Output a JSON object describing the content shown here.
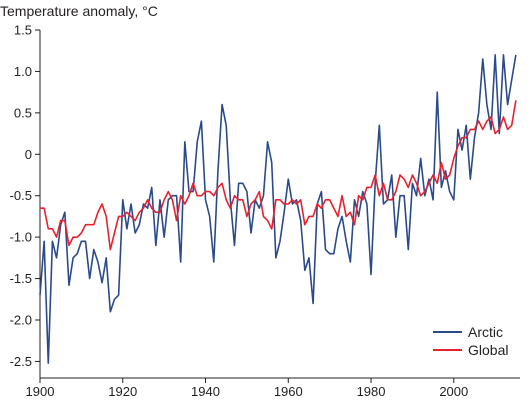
{
  "chart_data": {
    "type": "line",
    "title": "",
    "ylabel": "Temperature anomaly, °C",
    "xlabel": "",
    "xlim": [
      1900,
      2016
    ],
    "ylim": [
      -2.7,
      1.5
    ],
    "xticks": [
      1900,
      1920,
      1940,
      1960,
      1980,
      2000
    ],
    "xtick_labels": [
      "1900",
      "1920",
      "1940",
      "1960",
      "1980",
      "2000"
    ],
    "yticks": [
      1.5,
      1.0,
      0.5,
      0,
      -0.5,
      -1.0,
      -1.5,
      -2.0,
      -2.5
    ],
    "ytick_labels": [
      "1.5",
      "1.0",
      "0.5",
      "0",
      "-0.5",
      "-1.0",
      "-1.5",
      "-2.0",
      "-2.5"
    ],
    "grid": false,
    "legend_position": "bottom-right",
    "series": [
      {
        "name": "Arctic",
        "color": "#2b4a8b",
        "x": [
          1900,
          1901,
          1902,
          1903,
          1904,
          1905,
          1906,
          1907,
          1908,
          1909,
          1910,
          1911,
          1912,
          1913,
          1914,
          1915,
          1916,
          1917,
          1918,
          1919,
          1920,
          1921,
          1922,
          1923,
          1924,
          1925,
          1926,
          1927,
          1928,
          1929,
          1930,
          1931,
          1932,
          1933,
          1934,
          1935,
          1936,
          1937,
          1938,
          1939,
          1940,
          1941,
          1942,
          1943,
          1944,
          1945,
          1946,
          1947,
          1948,
          1949,
          1950,
          1951,
          1952,
          1953,
          1954,
          1955,
          1956,
          1957,
          1958,
          1959,
          1960,
          1961,
          1962,
          1963,
          1964,
          1965,
          1966,
          1967,
          1968,
          1969,
          1970,
          1971,
          1972,
          1973,
          1974,
          1975,
          1976,
          1977,
          1978,
          1979,
          1980,
          1981,
          1982,
          1983,
          1984,
          1985,
          1986,
          1987,
          1988,
          1989,
          1990,
          1991,
          1992,
          1993,
          1994,
          1995,
          1996,
          1997,
          1998,
          1999,
          2000,
          2001,
          2002,
          2003,
          2004,
          2005,
          2006,
          2007,
          2008,
          2009,
          2010,
          2011,
          2012,
          2013,
          2014,
          2015
        ],
        "values": [
          -1.7,
          -1.05,
          -2.52,
          -1.05,
          -1.25,
          -0.85,
          -0.7,
          -1.58,
          -1.25,
          -1.2,
          -1.05,
          -1.05,
          -1.5,
          -1.15,
          -1.3,
          -1.55,
          -1.25,
          -1.9,
          -1.75,
          -1.7,
          -0.55,
          -0.9,
          -0.6,
          -0.95,
          -0.85,
          -0.6,
          -0.65,
          -0.4,
          -1.1,
          -0.55,
          -1.0,
          -0.55,
          -0.5,
          -0.5,
          -1.3,
          0.15,
          -0.45,
          -0.45,
          0.15,
          0.4,
          -0.55,
          -0.75,
          -1.3,
          -0.2,
          0.6,
          0.35,
          -0.55,
          -1.1,
          -0.35,
          -0.35,
          -0.45,
          -0.95,
          -0.55,
          -0.65,
          -0.5,
          0.15,
          -0.1,
          -1.25,
          -1.05,
          -0.7,
          -0.3,
          -0.6,
          -0.55,
          -0.8,
          -1.4,
          -1.25,
          -1.8,
          -0.6,
          -0.45,
          -1.15,
          -1.2,
          -1.2,
          -0.9,
          -0.75,
          -1.05,
          -1.3,
          -0.55,
          -0.75,
          -0.45,
          -0.6,
          -1.45,
          -0.35,
          0.35,
          -0.6,
          -0.55,
          -0.25,
          -1.0,
          -0.5,
          -0.5,
          -1.15,
          -0.35,
          -0.5,
          -0.05,
          -0.5,
          -0.3,
          -0.55,
          0.75,
          -0.4,
          -0.2,
          -0.45,
          -0.55,
          0.3,
          0.05,
          0.35,
          -0.3,
          0.2,
          0.5,
          1.15,
          0.6,
          0.3,
          1.2,
          0.25,
          1.2,
          0.6,
          0.9,
          1.2
        ]
      },
      {
        "name": "Global",
        "color": "#e8212e",
        "x": [
          1900,
          1901,
          1902,
          1903,
          1904,
          1905,
          1906,
          1907,
          1908,
          1909,
          1910,
          1911,
          1912,
          1913,
          1914,
          1915,
          1916,
          1917,
          1918,
          1919,
          1920,
          1921,
          1922,
          1923,
          1924,
          1925,
          1926,
          1927,
          1928,
          1929,
          1930,
          1931,
          1932,
          1933,
          1934,
          1935,
          1936,
          1937,
          1938,
          1939,
          1940,
          1941,
          1942,
          1943,
          1944,
          1945,
          1946,
          1947,
          1948,
          1949,
          1950,
          1951,
          1952,
          1953,
          1954,
          1955,
          1956,
          1957,
          1958,
          1959,
          1960,
          1961,
          1962,
          1963,
          1964,
          1965,
          1966,
          1967,
          1968,
          1969,
          1970,
          1971,
          1972,
          1973,
          1974,
          1975,
          1976,
          1977,
          1978,
          1979,
          1980,
          1981,
          1982,
          1983,
          1984,
          1985,
          1986,
          1987,
          1988,
          1989,
          1990,
          1991,
          1992,
          1993,
          1994,
          1995,
          1996,
          1997,
          1998,
          1999,
          2000,
          2001,
          2002,
          2003,
          2004,
          2005,
          2006,
          2007,
          2008,
          2009,
          2010,
          2011,
          2012,
          2013,
          2014,
          2015
        ],
        "values": [
          -0.65,
          -0.65,
          -0.9,
          -0.9,
          -1.0,
          -0.8,
          -0.8,
          -1.1,
          -1.0,
          -1.0,
          -0.95,
          -0.85,
          -0.85,
          -0.85,
          -0.7,
          -0.6,
          -0.75,
          -1.15,
          -0.95,
          -0.75,
          -0.75,
          -0.7,
          -0.75,
          -0.8,
          -0.7,
          -0.65,
          -0.55,
          -0.65,
          -0.7,
          -0.7,
          -0.55,
          -0.45,
          -0.55,
          -0.8,
          -0.5,
          -0.6,
          -0.5,
          -0.35,
          -0.5,
          -0.5,
          -0.45,
          -0.45,
          -0.5,
          -0.4,
          -0.35,
          -0.55,
          -0.65,
          -0.5,
          -0.55,
          -0.55,
          -0.75,
          -0.6,
          -0.55,
          -0.45,
          -0.75,
          -0.8,
          -0.9,
          -0.55,
          -0.55,
          -0.6,
          -0.6,
          -0.55,
          -0.6,
          -0.55,
          -0.85,
          -0.75,
          -0.75,
          -0.6,
          -0.65,
          -0.55,
          -0.55,
          -0.65,
          -0.75,
          -0.5,
          -0.75,
          -0.7,
          -0.85,
          -0.5,
          -0.55,
          -0.4,
          -0.4,
          -0.25,
          -0.5,
          -0.35,
          -0.55,
          -0.55,
          -0.45,
          -0.25,
          -0.3,
          -0.4,
          -0.25,
          -0.35,
          -0.5,
          -0.45,
          -0.35,
          -0.25,
          -0.35,
          -0.1,
          -0.3,
          -0.25,
          -0.05,
          0.1,
          0.2,
          0.2,
          0.3,
          0.3,
          0.4,
          0.3,
          0.4,
          0.45,
          0.25,
          0.3,
          0.45,
          0.3,
          0.35,
          0.65
        ]
      }
    ]
  }
}
